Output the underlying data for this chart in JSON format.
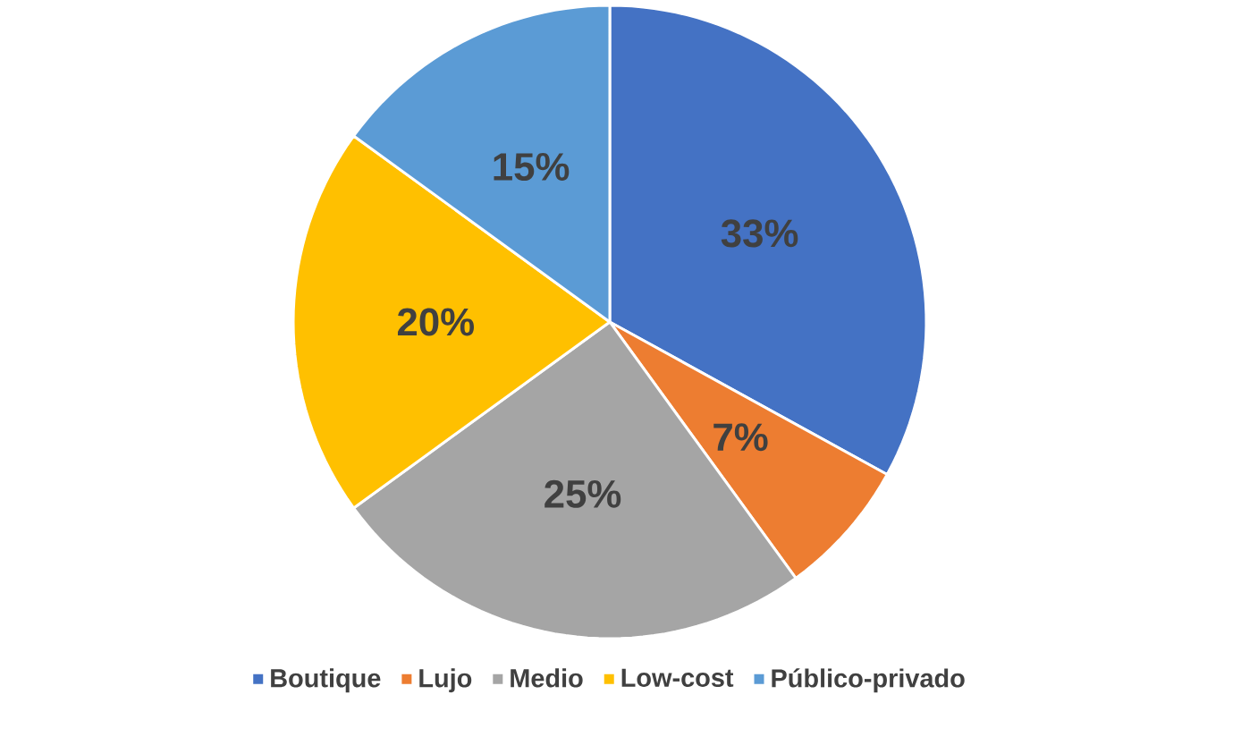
{
  "chart_data": {
    "type": "pie",
    "categories": [
      "Boutique",
      "Lujo",
      "Medio",
      "Low-cost",
      "Público-privado"
    ],
    "values": [
      33,
      7,
      25,
      20,
      15
    ],
    "colors": [
      "#4472c4",
      "#ed7d31",
      "#a5a5a5",
      "#ffc000",
      "#5b9bd5"
    ],
    "value_labels": [
      "33%",
      "7%",
      "25%",
      "20%",
      "15%"
    ],
    "legend": "bottom"
  }
}
